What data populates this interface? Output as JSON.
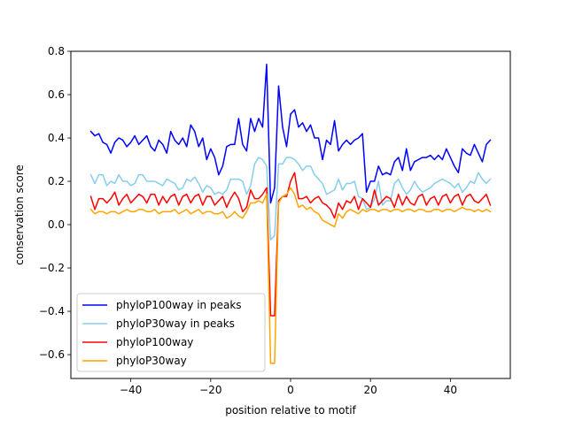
{
  "chart_data": {
    "type": "line",
    "title": "",
    "xlabel": "position relative to motif",
    "ylabel": "conservation score",
    "xlim": [
      -55.0,
      55.0
    ],
    "ylim": [
      -0.71,
      0.8
    ],
    "xticks": [
      -40,
      -20,
      0,
      20,
      40
    ],
    "xtick_labels": [
      "−40",
      "−20",
      "0",
      "20",
      "40"
    ],
    "yticks": [
      -0.6,
      -0.4,
      -0.2,
      0.0,
      0.2,
      0.4,
      0.6,
      0.8
    ],
    "ytick_labels": [
      "−0.6",
      "−0.4",
      "−0.2",
      "0.0",
      "0.2",
      "0.4",
      "0.6",
      "0.8"
    ],
    "grid": false,
    "legend_position": "lower-left",
    "x": [
      -50,
      -49,
      -48,
      -47,
      -46,
      -45,
      -44,
      -43,
      -42,
      -41,
      -40,
      -39,
      -38,
      -37,
      -36,
      -35,
      -34,
      -33,
      -32,
      -31,
      -30,
      -29,
      -28,
      -27,
      -26,
      -25,
      -24,
      -23,
      -22,
      -21,
      -20,
      -19,
      -18,
      -17,
      -16,
      -15,
      -14,
      -13,
      -12,
      -11,
      -10,
      -9,
      -8,
      -7,
      -6,
      -5,
      -4,
      -3,
      -2,
      -1,
      0,
      1,
      2,
      3,
      4,
      5,
      6,
      7,
      8,
      9,
      10,
      11,
      12,
      13,
      14,
      15,
      16,
      17,
      18,
      19,
      20,
      21,
      22,
      23,
      24,
      25,
      26,
      27,
      28,
      29,
      30,
      31,
      32,
      33,
      34,
      35,
      36,
      37,
      38,
      39,
      40,
      41,
      42,
      43,
      44,
      45,
      46,
      47,
      48,
      49,
      50
    ],
    "series": [
      {
        "name": "phyloP100way in peaks",
        "color": "#0000ff",
        "values": [
          0.43,
          0.41,
          0.42,
          0.38,
          0.37,
          0.33,
          0.38,
          0.4,
          0.39,
          0.36,
          0.38,
          0.41,
          0.37,
          0.39,
          0.41,
          0.36,
          0.34,
          0.39,
          0.37,
          0.33,
          0.43,
          0.39,
          0.37,
          0.4,
          0.36,
          0.46,
          0.43,
          0.36,
          0.4,
          0.3,
          0.35,
          0.31,
          0.23,
          0.27,
          0.36,
          0.37,
          0.37,
          0.49,
          0.37,
          0.34,
          0.49,
          0.43,
          0.49,
          0.45,
          0.74,
          0.1,
          0.17,
          0.64,
          0.45,
          0.36,
          0.51,
          0.53,
          0.45,
          0.47,
          0.43,
          0.46,
          0.4,
          0.4,
          0.3,
          0.39,
          0.37,
          0.48,
          0.34,
          0.37,
          0.39,
          0.37,
          0.39,
          0.4,
          0.42,
          0.15,
          0.2,
          0.2,
          0.27,
          0.23,
          0.24,
          0.23,
          0.29,
          0.31,
          0.25,
          0.35,
          0.25,
          0.29,
          0.3,
          0.31,
          0.31,
          0.32,
          0.3,
          0.32,
          0.3,
          0.35,
          0.31,
          0.27,
          0.24,
          0.35,
          0.33,
          0.32,
          0.37,
          0.33,
          0.29,
          0.37,
          0.39
        ]
      },
      {
        "name": "phyloP30way in peaks",
        "color": "#87ceeb",
        "values": [
          0.23,
          0.19,
          0.23,
          0.23,
          0.18,
          0.2,
          0.19,
          0.23,
          0.2,
          0.2,
          0.18,
          0.19,
          0.23,
          0.23,
          0.2,
          0.2,
          0.2,
          0.19,
          0.18,
          0.21,
          0.2,
          0.19,
          0.16,
          0.17,
          0.21,
          0.2,
          0.22,
          0.19,
          0.15,
          0.18,
          0.17,
          0.14,
          0.15,
          0.14,
          0.16,
          0.21,
          0.21,
          0.21,
          0.2,
          0.14,
          0.18,
          0.28,
          0.31,
          0.3,
          0.27,
          -0.07,
          -0.05,
          0.28,
          0.28,
          0.31,
          0.31,
          0.3,
          0.28,
          0.25,
          0.27,
          0.27,
          0.23,
          0.21,
          0.19,
          0.14,
          0.15,
          0.16,
          0.21,
          0.16,
          0.19,
          0.19,
          0.2,
          0.13,
          0.12,
          0.07,
          0.08,
          0.12,
          0.2,
          0.09,
          0.11,
          0.11,
          0.19,
          0.21,
          0.17,
          0.14,
          0.16,
          0.2,
          0.17,
          0.15,
          0.16,
          0.17,
          0.19,
          0.2,
          0.21,
          0.2,
          0.19,
          0.17,
          0.19,
          0.15,
          0.17,
          0.2,
          0.19,
          0.24,
          0.21,
          0.19,
          0.21
        ]
      },
      {
        "name": "phyloP100way",
        "color": "#ff0000",
        "values": [
          0.13,
          0.07,
          0.12,
          0.12,
          0.1,
          0.12,
          0.15,
          0.09,
          0.12,
          0.14,
          0.1,
          0.12,
          0.14,
          0.13,
          0.1,
          0.14,
          0.14,
          0.09,
          0.13,
          0.1,
          0.13,
          0.14,
          0.09,
          0.13,
          0.14,
          0.1,
          0.13,
          0.14,
          0.09,
          0.13,
          0.13,
          0.09,
          0.11,
          0.13,
          0.08,
          0.12,
          0.15,
          0.12,
          0.06,
          0.08,
          0.16,
          0.12,
          0.12,
          0.14,
          0.17,
          -0.42,
          -0.42,
          0.11,
          0.13,
          0.13,
          0.2,
          0.24,
          0.12,
          0.12,
          0.13,
          0.1,
          0.12,
          0.13,
          0.1,
          0.09,
          0.07,
          0.03,
          0.1,
          0.07,
          0.11,
          0.1,
          0.13,
          0.07,
          0.12,
          0.1,
          0.08,
          0.16,
          0.09,
          0.11,
          0.13,
          0.12,
          0.08,
          0.14,
          0.09,
          0.13,
          0.1,
          0.09,
          0.13,
          0.14,
          0.09,
          0.12,
          0.13,
          0.09,
          0.13,
          0.14,
          0.1,
          0.13,
          0.14,
          0.09,
          0.13,
          0.14,
          0.11,
          0.1,
          0.12,
          0.14,
          0.09
        ]
      },
      {
        "name": "phyloP30way",
        "color": "#ffa500",
        "values": [
          0.07,
          0.05,
          0.06,
          0.06,
          0.05,
          0.06,
          0.06,
          0.05,
          0.06,
          0.07,
          0.06,
          0.06,
          0.07,
          0.07,
          0.06,
          0.06,
          0.07,
          0.05,
          0.06,
          0.06,
          0.06,
          0.07,
          0.05,
          0.06,
          0.07,
          0.05,
          0.06,
          0.07,
          0.05,
          0.06,
          0.06,
          0.05,
          0.05,
          0.06,
          0.03,
          0.04,
          0.06,
          0.04,
          0.03,
          0.06,
          0.1,
          0.1,
          0.11,
          0.1,
          0.14,
          -0.64,
          -0.64,
          0.1,
          0.13,
          0.14,
          0.17,
          0.14,
          0.08,
          0.09,
          0.07,
          0.08,
          0.06,
          0.05,
          0.02,
          0.01,
          0.0,
          -0.01,
          0.05,
          0.03,
          0.06,
          0.07,
          0.06,
          0.05,
          0.07,
          0.06,
          0.07,
          0.07,
          0.06,
          0.07,
          0.07,
          0.06,
          0.07,
          0.07,
          0.06,
          0.07,
          0.07,
          0.06,
          0.07,
          0.07,
          0.06,
          0.06,
          0.07,
          0.07,
          0.06,
          0.07,
          0.07,
          0.06,
          0.07,
          0.08,
          0.07,
          0.07,
          0.06,
          0.07,
          0.06,
          0.07,
          0.06
        ]
      }
    ]
  }
}
